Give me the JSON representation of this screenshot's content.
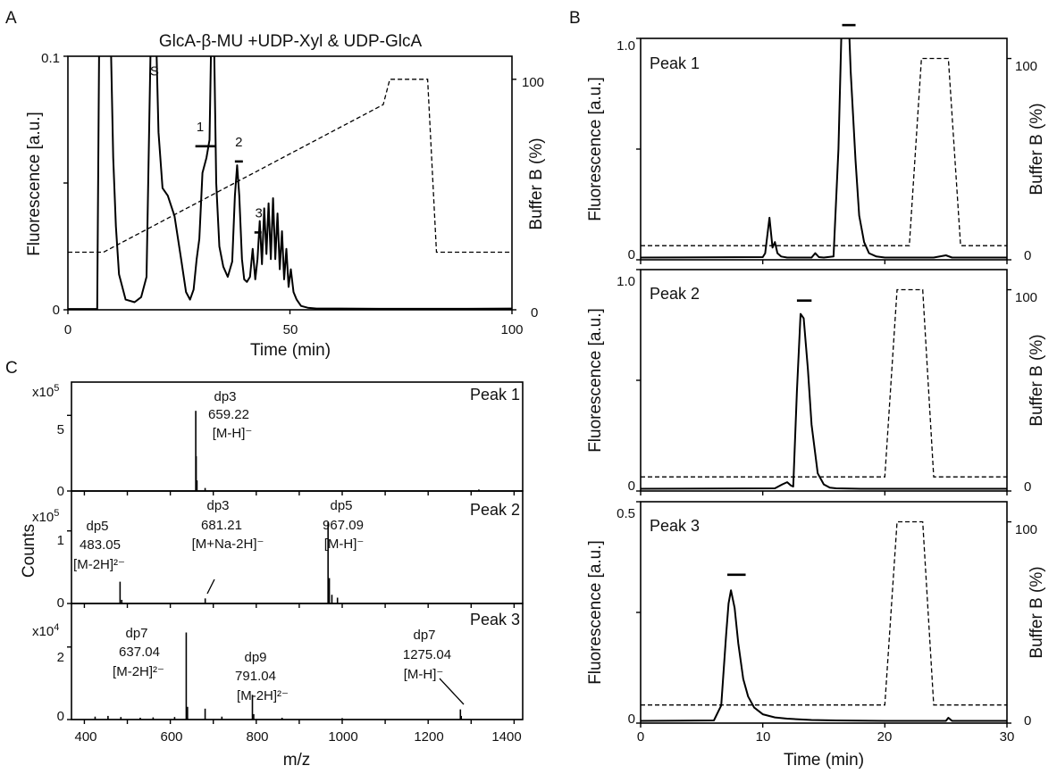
{
  "figure": {
    "panel_letters": [
      "A",
      "B",
      "C"
    ]
  },
  "chart_data": [
    {
      "id": "A",
      "type": "line",
      "title": "GlcA-β-MU +UDP-Xyl & UDP-GlcA",
      "xlabel": "Time (min)",
      "ylabel": "Fluorescence [a.u.]",
      "y2label": "Buffer B (%)",
      "xlim": [
        0,
        100
      ],
      "ylim": [
        0,
        0.1
      ],
      "y2lim": [
        0,
        110
      ],
      "xticks": [
        "0",
        "50",
        "100"
      ],
      "yticks": [
        {
          "v": 0,
          "label": "0"
        },
        {
          "v": 0.1,
          "label": "0.1"
        }
      ],
      "y2ticks": [
        {
          "v": 0,
          "label": "0"
        },
        {
          "v": 100,
          "label": "100"
        }
      ],
      "series": [
        {
          "style": "solid",
          "x": [
            0,
            6.6,
            7.1,
            9.5,
            10.2,
            10.8,
            11.5,
            13,
            15,
            16.5,
            17.7,
            18.8,
            19.7,
            20.4,
            21.3,
            22.5,
            24,
            25.5,
            26.6,
            27.5,
            28.3,
            29,
            29.6,
            30.3,
            31.2,
            31.9,
            32.4,
            32.8,
            33.4,
            34.1,
            35,
            36,
            37,
            37.6,
            38.1,
            38.6,
            39.2,
            39.7,
            40.3,
            41,
            41.6,
            42.2,
            42.7,
            43.2,
            43.7,
            44.2,
            44.7,
            45.2,
            45.7,
            46.2,
            46.7,
            47.2,
            47.7,
            48.2,
            48.7,
            49.2,
            49.7,
            50.2,
            50.8,
            51.5,
            52.5,
            54,
            56,
            60,
            70,
            80,
            90,
            100
          ],
          "y": [
            0.0003,
            0.0003,
            0.12,
            0.12,
            0.06,
            0.033,
            0.014,
            0.004,
            0.003,
            0.005,
            0.013,
            0.12,
            0.12,
            0.07,
            0.048,
            0.045,
            0.037,
            0.02,
            0.007,
            0.004,
            0.008,
            0.02,
            0.028,
            0.054,
            0.06,
            0.067,
            0.12,
            0.12,
            0.05,
            0.025,
            0.017,
            0.013,
            0.019,
            0.045,
            0.057,
            0.045,
            0.02,
            0.012,
            0.011,
            0.013,
            0.024,
            0.012,
            0.02,
            0.035,
            0.018,
            0.04,
            0.022,
            0.042,
            0.02,
            0.044,
            0.02,
            0.038,
            0.016,
            0.031,
            0.012,
            0.024,
            0.009,
            0.016,
            0.007,
            0.004,
            0.0015,
            0.0008,
            0.0005,
            0.0005,
            0.0004,
            0.0004,
            0.0004,
            0.0005
          ]
        },
        {
          "style": "dashed",
          "x": [
            0,
            8,
            71,
            72.5,
            81,
            83,
            100
          ],
          "y2": [
            25,
            25,
            89,
            100,
            100,
            25,
            25
          ]
        }
      ],
      "annotations": [
        {
          "label": "S",
          "x": 19.5,
          "y": 0.0925
        },
        {
          "label": "1",
          "x": 29.8,
          "y": 0.0705,
          "bar": [
            28.7,
            33.2
          ],
          "bar_y": 0.0645
        },
        {
          "label": "2",
          "x": 38.5,
          "y": 0.0645,
          "bar": [
            37.6,
            39.4
          ],
          "bar_y": 0.0585
        },
        {
          "label": "3",
          "x": 43,
          "y": 0.0365,
          "bar": [
            42,
            43.6
          ],
          "bar_y": 0.0305
        }
      ]
    },
    {
      "id": "B1",
      "type": "line",
      "panel_label": "Peak 1",
      "ylabel": "Fluorescence [a.u.]",
      "y2label": "Buffer B (%)",
      "xlim": [
        0,
        30
      ],
      "ylim": [
        0,
        1.0
      ],
      "y2lim": [
        0,
        110
      ],
      "yticks": [
        {
          "v": 0,
          "label": "0"
        },
        {
          "v": 1,
          "label": "1.0"
        }
      ],
      "y2ticks": [
        {
          "v": 0,
          "label": "0"
        },
        {
          "v": 100,
          "label": "100"
        }
      ],
      "series": [
        {
          "style": "solid",
          "x": [
            0,
            10,
            10.2,
            10.4,
            10.55,
            10.8,
            11.0,
            11.2,
            11.5,
            12,
            14,
            14.3,
            14.6,
            15,
            15.8,
            16.2,
            16.5,
            17.0,
            17.2,
            17.6,
            17.9,
            18.3,
            18.7,
            19.3,
            20,
            24,
            25,
            25.5,
            26,
            30
          ],
          "y": [
            0.01,
            0.012,
            0.03,
            0.12,
            0.19,
            0.055,
            0.08,
            0.03,
            0.015,
            0.01,
            0.01,
            0.03,
            0.012,
            0.01,
            0.015,
            0.5,
            1.15,
            1.15,
            0.85,
            0.45,
            0.2,
            0.08,
            0.03,
            0.015,
            0.01,
            0.01,
            0.02,
            0.01,
            0.01,
            0.01
          ]
        },
        {
          "style": "dashed",
          "x": [
            0,
            22,
            23,
            25.2,
            26.2,
            30
          ],
          "y2": [
            7,
            7,
            100,
            100,
            7,
            7
          ]
        }
      ],
      "annotations": [
        {
          "bar": [
            16.5,
            17.6
          ],
          "bar_y": 1.06
        }
      ]
    },
    {
      "id": "B2",
      "type": "line",
      "panel_label": "Peak 2",
      "ylabel": "Fluorescence [a.u.]",
      "y2label": "Buffer B (%)",
      "xlim": [
        0,
        30
      ],
      "ylim": [
        0,
        1.0
      ],
      "y2lim": [
        0,
        110
      ],
      "yticks": [
        {
          "v": 0,
          "label": "0"
        },
        {
          "v": 1,
          "label": "1.0"
        }
      ],
      "y2ticks": [
        {
          "v": 0,
          "label": "0"
        },
        {
          "v": 100,
          "label": "100"
        }
      ],
      "series": [
        {
          "style": "solid",
          "x": [
            0,
            11,
            11.6,
            12,
            12.3,
            12.5,
            12.8,
            13.1,
            13.35,
            13.7,
            14,
            14.5,
            15,
            15.5,
            16,
            18,
            22,
            30
          ],
          "y": [
            0.01,
            0.012,
            0.03,
            0.04,
            0.025,
            0.02,
            0.45,
            0.8,
            0.78,
            0.55,
            0.3,
            0.08,
            0.03,
            0.015,
            0.012,
            0.01,
            0.01,
            0.01
          ]
        },
        {
          "style": "dashed",
          "x": [
            0,
            20,
            21,
            23.1,
            24,
            30
          ],
          "y2": [
            7,
            7,
            100,
            100,
            7,
            7
          ]
        }
      ],
      "annotations": [
        {
          "bar": [
            12.8,
            14.0
          ],
          "bar_y": 0.86
        }
      ]
    },
    {
      "id": "B3",
      "type": "line",
      "panel_label": "Peak 3",
      "xlabel": "Time (min)",
      "ylabel": "Fluorescence [a.u.]",
      "y2label": "Buffer B (%)",
      "xlim": [
        0,
        30
      ],
      "ylim": [
        0,
        0.5
      ],
      "y2lim": [
        0,
        110
      ],
      "xticks": [
        "0",
        "10",
        "20",
        "30"
      ],
      "yticks": [
        {
          "v": 0,
          "label": "0"
        },
        {
          "v": 0.5,
          "label": "0.5"
        }
      ],
      "y2ticks": [
        {
          "v": 0,
          "label": "0"
        },
        {
          "v": 100,
          "label": "100"
        }
      ],
      "series": [
        {
          "style": "solid",
          "x": [
            0,
            6,
            6.6,
            7.0,
            7.2,
            7.4,
            7.7,
            8.0,
            8.4,
            8.8,
            9.3,
            10,
            11,
            12,
            14,
            16,
            20,
            25,
            25.2,
            25.5,
            30
          ],
          "y": [
            0.005,
            0.006,
            0.04,
            0.2,
            0.27,
            0.3,
            0.26,
            0.18,
            0.1,
            0.06,
            0.035,
            0.02,
            0.013,
            0.01,
            0.007,
            0.006,
            0.005,
            0.005,
            0.012,
            0.005,
            0.005
          ]
        },
        {
          "style": "dashed",
          "x": [
            0,
            20,
            21,
            23.1,
            24,
            30
          ],
          "y2": [
            9,
            9,
            100,
            100,
            9,
            9
          ]
        }
      ],
      "annotations": [
        {
          "bar": [
            7.1,
            8.6
          ],
          "bar_y": 0.335
        }
      ]
    },
    {
      "id": "C1",
      "type": "bar",
      "panel_label": "Peak 1",
      "scale_label": "x10^5",
      "xlim": [
        370,
        1420
      ],
      "ylim": [
        0,
        7.2
      ],
      "yticks": [
        {
          "v": 0,
          "label": "0"
        },
        {
          "v": 5,
          "label": "5"
        }
      ],
      "peaks": [
        {
          "x": 659.22,
          "y": 5.3
        },
        {
          "x": 660.2,
          "y": 2.3
        },
        {
          "x": 662,
          "y": 0.7
        },
        {
          "x": 681,
          "y": 0.2
        },
        {
          "x": 1318,
          "y": 0.1
        }
      ],
      "annotations": [
        {
          "lines": [
            "dp3",
            "659.22",
            "[M-H]⁻"
          ]
        }
      ]
    },
    {
      "id": "C2",
      "type": "bar",
      "panel_label": "Peak 2",
      "scale_label": "x10^5",
      "xlim": [
        370,
        1420
      ],
      "ylim": [
        0,
        1.55
      ],
      "yticks": [
        {
          "v": 0,
          "label": "0"
        },
        {
          "v": 1,
          "label": "1"
        }
      ],
      "peaks": [
        {
          "x": 483.05,
          "y": 0.3
        },
        {
          "x": 487,
          "y": 0.05
        },
        {
          "x": 681.21,
          "y": 0.07
        },
        {
          "x": 967.09,
          "y": 1.12
        },
        {
          "x": 970,
          "y": 0.35
        },
        {
          "x": 976,
          "y": 0.12
        },
        {
          "x": 989,
          "y": 0.08
        }
      ],
      "annotations": [
        {
          "lines": [
            "dp5",
            "483.05",
            "[M-2H]²⁻"
          ]
        },
        {
          "lines": [
            "dp3",
            "681.21",
            "[M+Na-2H]⁻"
          ]
        },
        {
          "lines": [
            "dp5",
            "967.09",
            "[M-H]⁻"
          ]
        }
      ]
    },
    {
      "id": "C3",
      "type": "bar",
      "panel_label": "Peak 3",
      "scale_label": "x10^4",
      "xlabel": "m/z",
      "ylabel": "Counts",
      "xlim": [
        370,
        1420
      ],
      "ylim": [
        0,
        3.2
      ],
      "xticks": [
        "400",
        "600",
        "800",
        "1000",
        "1200",
        "1400"
      ],
      "yticks": [
        {
          "v": 0,
          "label": "0"
        },
        {
          "v": 2,
          "label": "2"
        }
      ],
      "peaks": [
        {
          "x": 425,
          "y": 0.08
        },
        {
          "x": 455,
          "y": 0.1
        },
        {
          "x": 485,
          "y": 0.07
        },
        {
          "x": 530,
          "y": 0.05
        },
        {
          "x": 560,
          "y": 0.06
        },
        {
          "x": 610,
          "y": 0.07
        },
        {
          "x": 637.04,
          "y": 2.4
        },
        {
          "x": 640,
          "y": 0.35
        },
        {
          "x": 681,
          "y": 0.3
        },
        {
          "x": 720,
          "y": 0.08
        },
        {
          "x": 791.04,
          "y": 0.68
        },
        {
          "x": 794,
          "y": 0.15
        },
        {
          "x": 860,
          "y": 0.05
        },
        {
          "x": 1000,
          "y": 0.04
        },
        {
          "x": 1275.04,
          "y": 0.28
        },
        {
          "x": 1277,
          "y": 0.1
        }
      ],
      "annotations": [
        {
          "lines": [
            "dp7",
            "637.04",
            "[M-2H]²⁻"
          ]
        },
        {
          "lines": [
            "dp9",
            "791.04",
            "[M-2H]²⁻"
          ]
        },
        {
          "lines": [
            "dp7",
            "1275.04",
            "[M-H]⁻"
          ]
        }
      ]
    }
  ]
}
